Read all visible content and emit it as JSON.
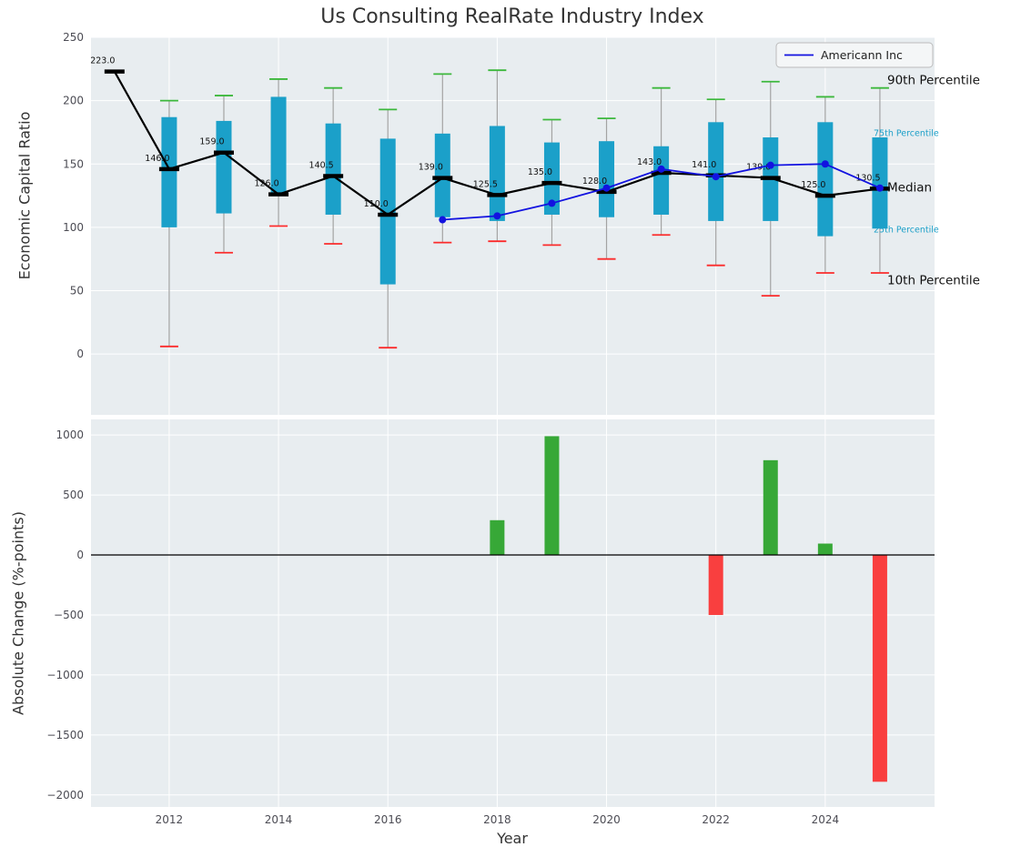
{
  "figure": {
    "background": "#ffffff",
    "panel_background": "#e8edf0",
    "grid_color": "#ffffff",
    "tick_color": "#4c4c54",
    "text_color": "#333333"
  },
  "chart_data": [
    {
      "type": "boxplot",
      "title": "Us Consulting RealRate Industry Index",
      "ylabel": "Economic Capital Ratio",
      "ylim": [
        -48,
        250
      ],
      "yticks": [
        0,
        50,
        100,
        150,
        200,
        250
      ],
      "xticks": [
        2012,
        2014,
        2016,
        2018,
        2020,
        2022,
        2024
      ],
      "grid": true,
      "years": [
        2011,
        2012,
        2013,
        2014,
        2015,
        2016,
        2017,
        2018,
        2019,
        2020,
        2021,
        2022,
        2023,
        2024,
        2025
      ],
      "median": [
        223.0,
        146.0,
        159.0,
        126.0,
        140.5,
        110.0,
        139.0,
        125.5,
        135.0,
        128.0,
        143.0,
        141.0,
        139.0,
        125.0,
        130.5
      ],
      "p25": [
        null,
        100,
        111,
        127,
        110,
        55,
        108,
        105,
        110,
        108,
        110,
        105,
        105,
        93,
        99
      ],
      "p75": [
        null,
        187,
        184,
        203,
        182,
        170,
        174,
        180,
        167,
        168,
        164,
        183,
        171,
        183,
        171
      ],
      "p10": [
        null,
        6,
        80,
        101,
        87,
        5,
        88,
        89,
        86,
        75,
        94,
        70,
        46,
        64,
        64
      ],
      "p90": [
        null,
        200,
        204,
        217,
        210,
        193,
        221,
        224,
        185,
        186,
        210,
        201,
        215,
        203,
        210
      ],
      "series": [
        {
          "name": "Americann Inc",
          "x": [
            2017,
            2018,
            2019,
            2020,
            2021,
            2022,
            2023,
            2024,
            2025
          ],
          "y": [
            106,
            109,
            119,
            131,
            146,
            140,
            149,
            150,
            131
          ]
        }
      ],
      "legend": {
        "label": "Americann Inc",
        "position": "upper right"
      },
      "annotations": [
        {
          "text": "90th Percentile",
          "y": 216,
          "color": "#111111",
          "size": "large"
        },
        {
          "text": "75th Percentile",
          "y": 175,
          "color": "#1b9fc8",
          "size": "small"
        },
        {
          "text": "Median",
          "y": 131,
          "color": "#111111",
          "size": "large"
        },
        {
          "text": "25th Percentile",
          "y": 99,
          "color": "#1b9fc8",
          "size": "small"
        },
        {
          "text": "10th Percentile",
          "y": 58,
          "color": "#111111",
          "size": "large"
        }
      ],
      "colors": {
        "box": "#1ba0c9",
        "whisker": "#a3a3a3",
        "cap_high": "#3cb83c",
        "cap_low": "#fb2b2b",
        "median": "#000000",
        "series": "#1212e0"
      }
    },
    {
      "type": "bar",
      "ylabel": "Absolute Change (%-points)",
      "xlabel": "Year",
      "ylim": [
        -2100,
        1130
      ],
      "yticks": [
        1000,
        500,
        0,
        -500,
        -1000,
        -1500,
        -2000
      ],
      "xticks": [
        2012,
        2014,
        2016,
        2018,
        2020,
        2022,
        2024
      ],
      "bars": [
        {
          "year": 2018,
          "value": 290
        },
        {
          "year": 2019,
          "value": 990
        },
        {
          "year": 2022,
          "value": -500
        },
        {
          "year": 2023,
          "value": 790
        },
        {
          "year": 2024,
          "value": 95
        },
        {
          "year": 2025,
          "value": -1890
        }
      ],
      "colors": {
        "positive": "#37a837",
        "negative": "#f93f3f",
        "zero_line": "#000000"
      }
    }
  ]
}
